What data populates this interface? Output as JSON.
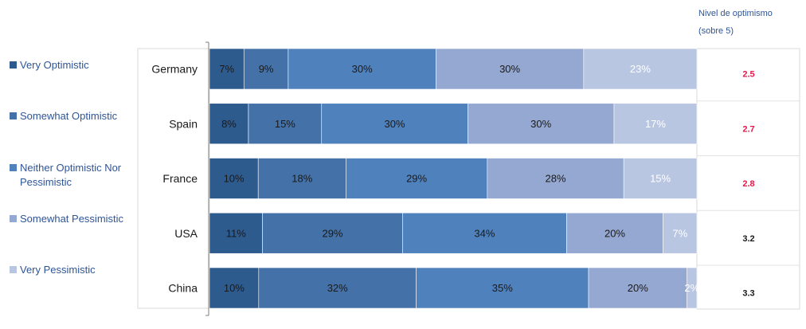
{
  "header": {
    "line1": "Nivel de optimismo",
    "line2": "(sobre 5)"
  },
  "chart_data": {
    "type": "bar",
    "orientation": "horizontal",
    "stacked": true,
    "normalized": true,
    "categories": [
      "Germany",
      "Spain",
      "France",
      "USA",
      "China"
    ],
    "series": [
      {
        "name": "Very Optimistic",
        "color": "#2e5b8d",
        "label_color": "#1a1a1a",
        "values": [
          7,
          8,
          10,
          11,
          10
        ]
      },
      {
        "name": "Somewhat Optimistic",
        "color": "#4472a8",
        "label_color": "#1a1a1a",
        "values": [
          9,
          15,
          18,
          29,
          32
        ]
      },
      {
        "name": "Neither Optimistic Nor Pessimistic",
        "color": "#4f81bd",
        "label_color": "#1a1a1a",
        "values": [
          30,
          30,
          29,
          34,
          35
        ]
      },
      {
        "name": "Somewhat Pessimistic",
        "color": "#95a8d2",
        "label_color": "#1a1a1a",
        "values": [
          30,
          30,
          28,
          20,
          20
        ]
      },
      {
        "name": "Very Pessimistic",
        "color": "#b9c6e2",
        "label_color": "#ffffff",
        "values": [
          23,
          17,
          15,
          7,
          2
        ]
      }
    ],
    "value_suffix": "%",
    "optimism_scores": [
      "2.5",
      "2.7",
      "2.8",
      "3.2",
      "3.3"
    ],
    "optimism_colors": [
      "#e8174a",
      "#e8174a",
      "#e8174a",
      "#1a1a1a",
      "#1a1a1a"
    ],
    "legend_position": "left"
  }
}
